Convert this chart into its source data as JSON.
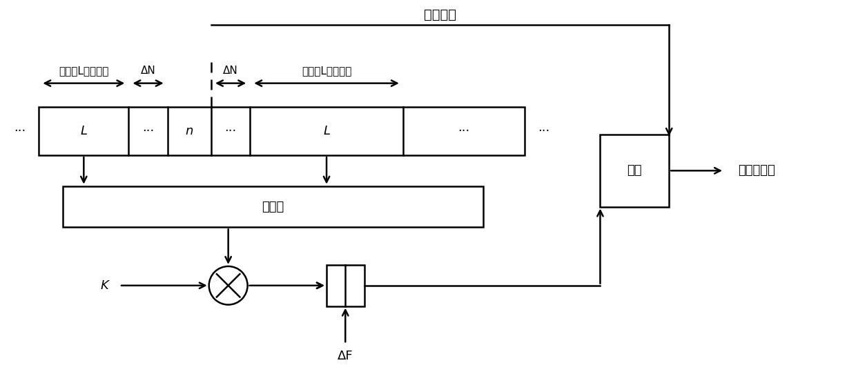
{
  "title": "被测单元",
  "bg_color": "#ffffff",
  "text_color": "#000000",
  "font_size_title": 14,
  "font_size_label": 13,
  "font_size_small": 11,
  "avg_label": "求均值",
  "detect_label": "检测",
  "gate_label": "过门限标志",
  "label_L1": "长度为L的数据段",
  "label_L2": "长度为L的数据段",
  "label_dN1": "ΔN",
  "label_dN2": "ΔN",
  "label_dF": "ΔF",
  "label_K": "K",
  "label_L": "L",
  "label_n": "n",
  "label_dots": "···"
}
